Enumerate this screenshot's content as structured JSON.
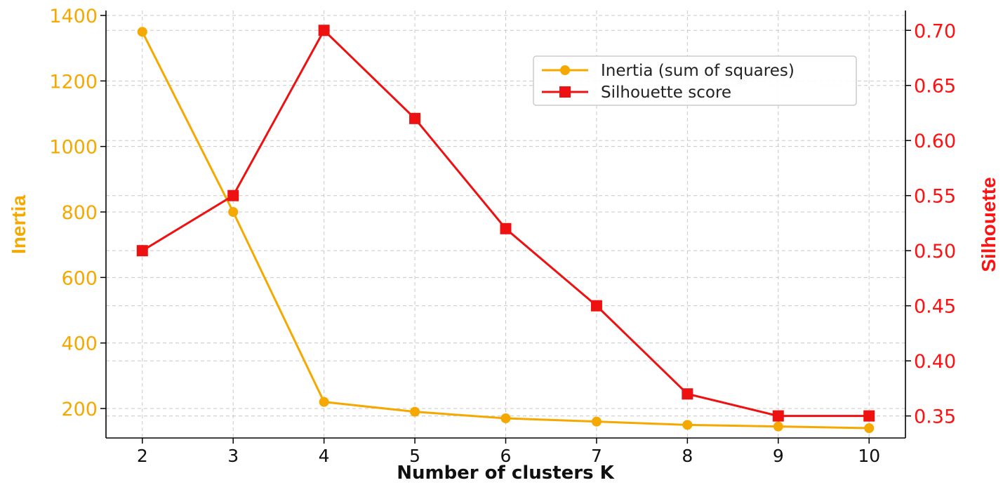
{
  "chart_data": {
    "type": "line",
    "xlabel": "Number of clusters K",
    "x": [
      2,
      3,
      4,
      5,
      6,
      7,
      8,
      9,
      10
    ],
    "xlim": [
      1.6,
      10.4
    ],
    "left_axis": {
      "label": "Inertia",
      "color": "#f5a800",
      "ylim": [
        110,
        1415
      ],
      "ticks": [
        200,
        400,
        600,
        800,
        1000,
        1200,
        1400
      ]
    },
    "right_axis": {
      "label": "Silhouette",
      "color": "#ff1111",
      "ylim": [
        0.33,
        0.718
      ],
      "ticks": [
        "0.35",
        "0.40",
        "0.45",
        "0.50",
        "0.55",
        "0.60",
        "0.65",
        "0.70"
      ]
    },
    "series": [
      {
        "name": "Inertia (sum of squares)",
        "axis": "left",
        "color": "#f5a800",
        "marker": "circle",
        "values": [
          1350,
          800,
          220,
          190,
          170,
          160,
          150,
          145,
          140
        ]
      },
      {
        "name": "Silhouette score",
        "axis": "right",
        "color": "#ee1111",
        "marker": "square",
        "values": [
          0.5,
          0.55,
          0.7,
          0.62,
          0.52,
          0.45,
          0.37,
          0.35,
          0.35
        ]
      }
    ],
    "grid": true,
    "legend_position": "top-right"
  }
}
